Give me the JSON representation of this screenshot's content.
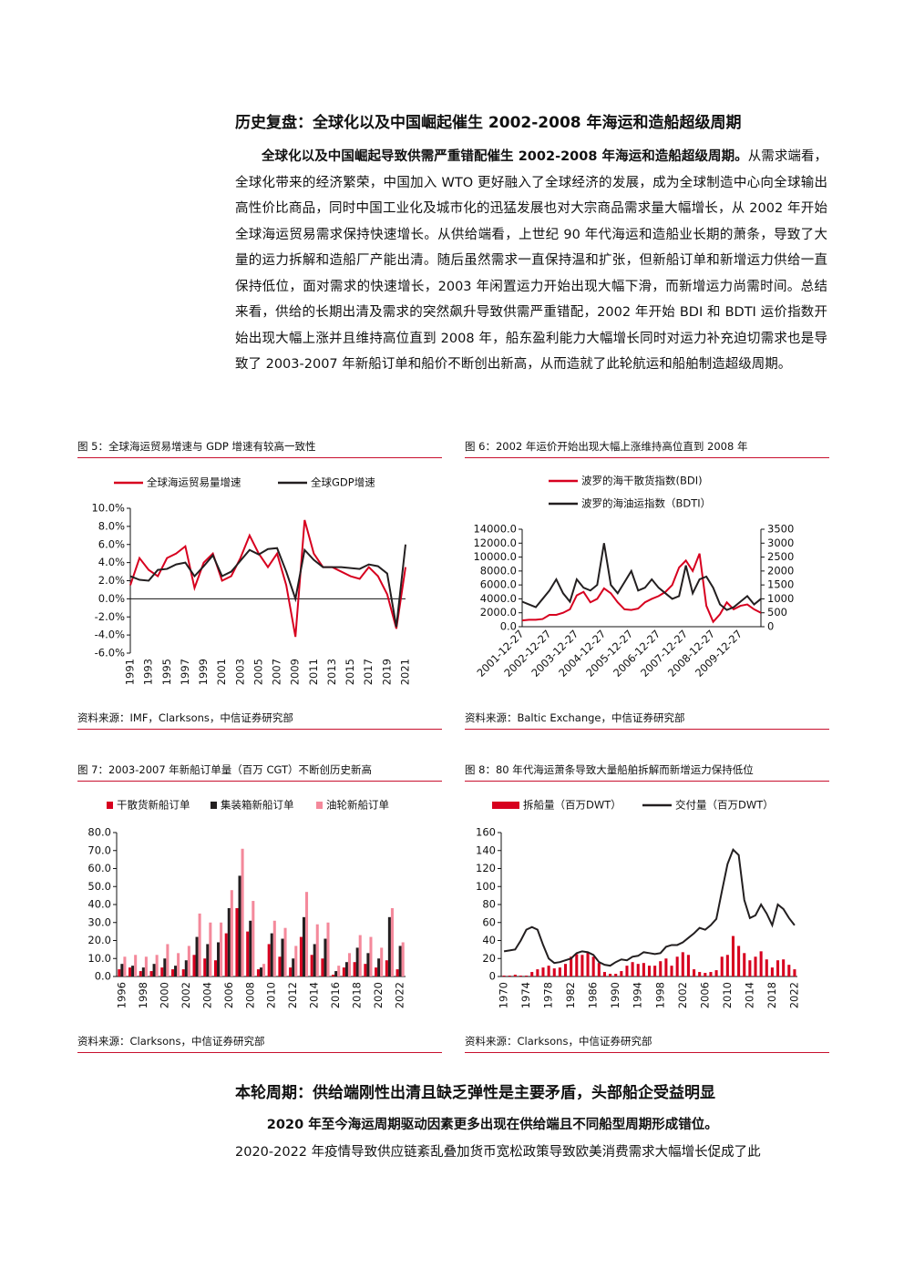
{
  "section1": {
    "heading": "历史复盘：全球化以及中国崛起催生 2002-2008 年海运和造船超级周期",
    "lead": "全球化以及中国崛起导致供需严重错配催生 2002-2008 年海运和造船超级周期。",
    "body": "从需求端看，全球化带来的经济繁荣，中国加入 WTO 更好融入了全球经济的发展，成为全球制造中心向全球输出高性价比商品，同时中国工业化及城市化的迅猛发展也对大宗商品需求量大幅增长，从 2002 年开始全球海运贸易需求保持快速增长。从供给端看，上世纪 90 年代海运和造船业长期的萧条，导致了大量的运力拆解和造船厂产能出清。随后虽然需求一直保持温和扩张，但新船订单和新增运力供给一直保持低位，面对需求的快速增长，2003 年闲置运力开始出现大幅下滑，而新增运力尚需时间。总结来看，供给的长期出清及需求的突然飙升导致供需严重错配，2002 年开始 BDI 和 BDTI 运价指数开始出现大幅上涨并且维持高位直到 2008 年，船东盈利能力大幅增长同时对运力补充迫切需求也是导致了 2003-2007 年新船订单和船价不断创出新高，从而造就了此轮航运和船舶制造超级周期。"
  },
  "figures": [
    {
      "caption": "图 5：全球海运贸易增速与 GDP 增速有较高一致性",
      "source": "资料来源：IMF，Clarksons，中信证券研究部",
      "chart": {
        "type": "line",
        "categories": [
          "1991",
          null,
          "1993",
          null,
          "1995",
          null,
          "1997",
          null,
          "1999",
          null,
          "2001",
          null,
          "2003",
          null,
          "2005",
          null,
          "2007",
          null,
          "2009",
          null,
          "2011",
          null,
          "2013",
          null,
          "2015",
          null,
          "2017",
          null,
          "2019",
          null,
          "2021"
        ],
        "series": [
          {
            "name": "全球海运贸易量增速",
            "color": "#d7001f",
            "values": [
              1.5,
              4.5,
              3.2,
              2.5,
              4.5,
              5.0,
              5.8,
              1.2,
              4.0,
              5.0,
              2.0,
              2.5,
              4.5,
              7.0,
              5.0,
              3.5,
              5.0,
              1.5,
              -4.2,
              8.7,
              5.0,
              3.5,
              3.5,
              3.0,
              2.5,
              2.2,
              3.5,
              2.5,
              0.5,
              -3.3,
              3.5
            ]
          },
          {
            "name": "全球GDP增速",
            "color": "#231f20",
            "values": [
              2.5,
              2.1,
              2.0,
              3.2,
              3.3,
              3.8,
              4.0,
              2.5,
              3.6,
              4.8,
              2.5,
              3.0,
              4.2,
              5.4,
              4.9,
              5.5,
              5.6,
              3.0,
              0.0,
              5.4,
              4.3,
              3.5,
              3.5,
              3.5,
              3.4,
              3.3,
              3.8,
              3.6,
              2.8,
              -3.1,
              6.0
            ]
          }
        ],
        "ylim": [
          -6,
          10
        ],
        "yticks": [
          {
            "value": -6,
            "label": "-6.0%"
          },
          {
            "value": -4,
            "label": "-4.0%"
          },
          {
            "value": -2,
            "label": "-2.0%"
          },
          {
            "value": 0,
            "label": "0.0%"
          },
          {
            "value": 2,
            "label": "2.0%"
          },
          {
            "value": 4,
            "label": "4.0%"
          },
          {
            "value": 6,
            "label": "6.0%"
          },
          {
            "value": 8,
            "label": "8.0%"
          },
          {
            "value": 10,
            "label": "10.0%"
          }
        ]
      }
    },
    {
      "caption": "图 6：2002 年运价开始出现大幅上涨维持高位直到 2008 年",
      "source": "资料来源：Baltic Exchange，中信证券研究部",
      "chart": {
        "type": "line",
        "categories": [
          "2001-12-27",
          null,
          null,
          null,
          "2002-12-27",
          null,
          null,
          null,
          "2003-12-27",
          null,
          null,
          null,
          "2004-12-27",
          null,
          null,
          null,
          "2005-12-27",
          null,
          null,
          null,
          "2006-12-27",
          null,
          null,
          null,
          "2007-12-27",
          null,
          null,
          null,
          "2008-12-27",
          null,
          null,
          null,
          "2009-12-27",
          null,
          null,
          null
        ],
        "series": [
          {
            "name": "波罗的海干散货指数(BDI)",
            "color": "#d7001f",
            "values": [
              900,
              1000,
              1000,
              1100,
              1700,
              1700,
              2000,
              2500,
              4500,
              5000,
              3500,
              4000,
              5500,
              4800,
              3500,
              2500,
              2400,
              2600,
              3500,
              4000,
              4400,
              5000,
              6000,
              8500,
              9500,
              8000,
              10500,
              3000,
              700,
              1800,
              3500,
              2500,
              3000,
              3200,
              2500,
              2000
            ]
          },
          {
            "name": "波罗的海油运指数（BDTI）",
            "color": "#231f20",
            "axis": "y2",
            "values": [
              900,
              800,
              700,
              1000,
              1300,
              1700,
              1200,
              900,
              1700,
              1400,
              1300,
              1500,
              3000,
              1500,
              1200,
              1600,
              2000,
              1300,
              1400,
              1700,
              1400,
              1200,
              1000,
              1100,
              2200,
              1200,
              1700,
              1800,
              1400,
              800,
              600,
              700,
              900,
              1100,
              800,
              1000
            ]
          }
        ],
        "ylim": [
          0,
          14000
        ],
        "yticks": [
          {
            "value": 0,
            "label": "0.0"
          },
          {
            "value": 2000,
            "label": "2000.0"
          },
          {
            "value": 4000,
            "label": "4000.0"
          },
          {
            "value": 6000,
            "label": "6000.0"
          },
          {
            "value": 8000,
            "label": "8000.0"
          },
          {
            "value": 10000,
            "label": "10000.0"
          },
          {
            "value": 12000,
            "label": "12000.0"
          },
          {
            "value": 14000,
            "label": "14000.0"
          }
        ],
        "y2lim": [
          0,
          3500
        ],
        "y2ticks": [
          0,
          500,
          1000,
          1500,
          2000,
          2500,
          3000,
          3500
        ]
      }
    },
    {
      "caption": "图 7：2003-2007 年新船订单量（百万 CGT）不断创历史新高",
      "source": "资料来源：Clarksons，中信证券研究部",
      "chart": {
        "type": "bar",
        "categories": [
          "1996",
          null,
          "1998",
          null,
          "2000",
          null,
          "2002",
          null,
          "2004",
          null,
          "2006",
          null,
          "2008",
          null,
          "2010",
          null,
          "2012",
          null,
          "2014",
          null,
          "2016",
          null,
          "2018",
          null,
          "2020",
          null,
          "2022"
        ],
        "series": [
          {
            "name": "干散货新船订单",
            "color": "#d7001f",
            "values": [
              4,
              5,
              3,
              3,
              5,
              4,
              4,
              12,
              10,
              9,
              24,
              38,
              25,
              4,
              18,
              11,
              5,
              22,
              12,
              10,
              1,
              5,
              8,
              7,
              5,
              9,
              4
            ]
          },
          {
            "name": "集装箱新船订单",
            "color": "#231f20",
            "values": [
              7,
              6,
              5,
              7,
              10,
              6,
              9,
              22,
              18,
              19,
              38,
              56,
              31,
              5,
              24,
              21,
              10,
              33,
              18,
              21,
              3,
              8,
              16,
              13,
              10,
              33,
              17
            ]
          },
          {
            "name": "油轮新船订单",
            "color": "#f4899b",
            "values": [
              11,
              12,
              11,
              12,
              18,
              13,
              17,
              35,
              30,
              30,
              48,
              71,
              42,
              7,
              31,
              27,
              17,
              47,
              29,
              30,
              6,
              13,
              23,
              22,
              16,
              38,
              19
            ]
          }
        ],
        "ylim": [
          0,
          80
        ],
        "yticks": [
          {
            "value": 0,
            "label": "0.0"
          },
          {
            "value": 10,
            "label": "10.0"
          },
          {
            "value": 20,
            "label": "20.0"
          },
          {
            "value": 30,
            "label": "30.0"
          },
          {
            "value": 40,
            "label": "40.0"
          },
          {
            "value": 50,
            "label": "50.0"
          },
          {
            "value": 60,
            "label": "60.0"
          },
          {
            "value": 70,
            "label": "70.0"
          },
          {
            "value": 80,
            "label": "80.0"
          }
        ]
      }
    },
    {
      "caption": "图 8：80 年代海运萧条导致大量船舶拆解而新增运力保持低位",
      "source": "资料来源：Clarksons，中信证券研究部",
      "chart": {
        "type": "bar",
        "categories": [
          "1970",
          null,
          null,
          null,
          "1974",
          null,
          null,
          null,
          "1978",
          null,
          null,
          null,
          "1982",
          null,
          null,
          null,
          "1986",
          null,
          null,
          null,
          "1990",
          null,
          null,
          null,
          "1994",
          null,
          null,
          null,
          "1998",
          null,
          null,
          null,
          "2002",
          null,
          null,
          null,
          "2006",
          null,
          null,
          null,
          "2010",
          null,
          null,
          null,
          "2014",
          null,
          null,
          null,
          "2018",
          null,
          null,
          null,
          "2022"
        ],
        "series": [
          {
            "name": "拆船量（百万DWT）",
            "color": "#d7001f",
            "values": [
              1,
              1,
              2,
              1,
              1,
              5,
              8,
              10,
              12,
              9,
              10,
              14,
              22,
              25,
              24,
              27,
              22,
              15,
              5,
              3,
              3,
              6,
              12,
              16,
              14,
              15,
              12,
              12,
              17,
              20,
              12,
              22,
              27,
              24,
              8,
              5,
              4,
              5,
              7,
              22,
              24,
              45,
              34,
              26,
              18,
              22,
              28,
              19,
              10,
              18,
              19,
              13,
              8
            ]
          },
          {
            "name": "交付量（百万DWT）",
            "color": "#231f20",
            "type": "line",
            "values": [
              28,
              29,
              30,
              40,
              52,
              55,
              52,
              35,
              20,
              15,
              16,
              18,
              20,
              26,
              28,
              27,
              24,
              16,
              13,
              12,
              16,
              19,
              18,
              22,
              23,
              27,
              26,
              25,
              26,
              33,
              35,
              35,
              38,
              43,
              48,
              54,
              52,
              57,
              64,
              95,
              125,
              141,
              135,
              85,
              65,
              68,
              80,
              70,
              57,
              80,
              75,
              65,
              57
            ]
          }
        ],
        "ylim": [
          0,
          160
        ],
        "yticks": [
          0,
          20,
          40,
          60,
          80,
          100,
          120,
          140,
          160
        ]
      }
    }
  ],
  "section2": {
    "heading": "本轮周期：供给端刚性出清且缺乏弹性是主要矛盾，头部船企受益明显",
    "lead": "2020 年至今海运周期驱动因素更多出现在供给端且不同船型周期形成错位。",
    "body": "2020-2022 年疫情导致供应链紊乱叠加货币宽松政策导致欧美消费需求大幅增长促成了此"
  }
}
